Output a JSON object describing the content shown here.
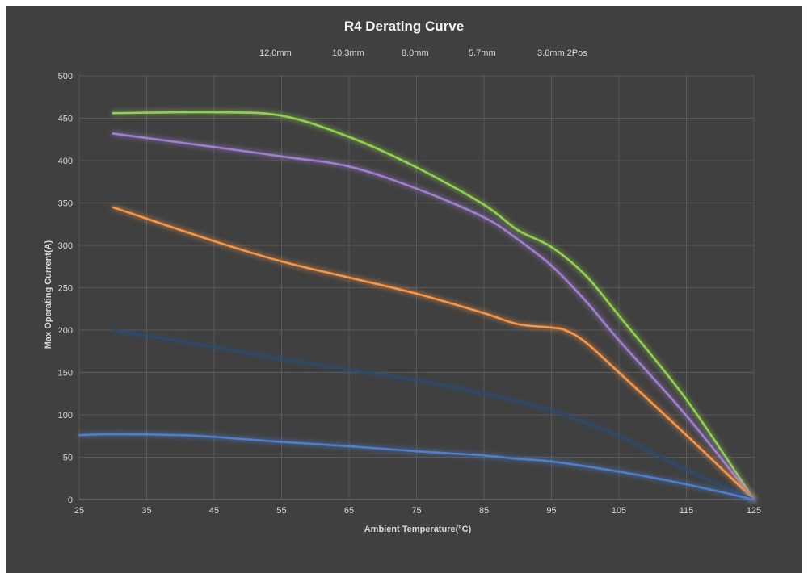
{
  "chart_data": {
    "type": "line",
    "title": "R4 Derating Curve",
    "xlabel": "Ambient Temperature(°C)",
    "ylabel": "Max Operating Current(A)",
    "xlim": [
      25,
      125
    ],
    "ylim": [
      0,
      500
    ],
    "xticks": [
      25,
      35,
      45,
      55,
      65,
      75,
      85,
      95,
      105,
      115,
      125
    ],
    "yticks": [
      0,
      50,
      100,
      150,
      200,
      250,
      300,
      350,
      400,
      450,
      500
    ],
    "grid": true,
    "legend_position": "top",
    "series": [
      {
        "name": "12.0mm",
        "color": "#92d050",
        "x": [
          30,
          45,
          55,
          65,
          75,
          85,
          90,
          95,
          100,
          105,
          115,
          125
        ],
        "y": [
          456,
          457,
          453,
          428,
          392,
          348,
          318,
          298,
          265,
          217,
          118,
          0
        ]
      },
      {
        "name": "10.3mm",
        "color": "#a07fd0",
        "x": [
          30,
          45,
          55,
          65,
          75,
          85,
          90,
          95,
          100,
          105,
          115,
          125
        ],
        "y": [
          432,
          416,
          405,
          393,
          367,
          333,
          307,
          276,
          235,
          188,
          99,
          0
        ]
      },
      {
        "name": "8.0mm",
        "color": "#f79646",
        "x": [
          30,
          45,
          55,
          65,
          75,
          85,
          90,
          95,
          97,
          100,
          105,
          115,
          125
        ],
        "y": [
          345,
          305,
          281,
          262,
          243,
          220,
          207,
          203,
          200,
          186,
          150,
          76,
          0
        ]
      },
      {
        "name": "5.7mm",
        "color": "#2e4a6e",
        "x": [
          30,
          45,
          55,
          65,
          75,
          85,
          95,
          105,
          115,
          125
        ],
        "y": [
          200,
          180,
          166,
          153,
          141,
          125,
          105,
          75,
          35,
          0
        ]
      },
      {
        "name": "3.6mm 2Pos",
        "color": "#4f7fcb",
        "x": [
          25,
          30,
          40,
          45,
          55,
          65,
          75,
          85,
          90,
          95,
          105,
          115,
          125
        ],
        "y": [
          76,
          77,
          76,
          74,
          68,
          63,
          57,
          52,
          48,
          45,
          33,
          18,
          0
        ]
      }
    ]
  }
}
